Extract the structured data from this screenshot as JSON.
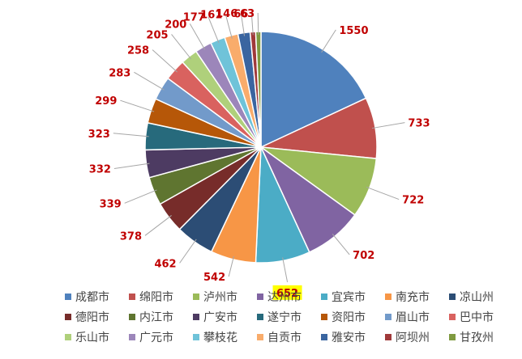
{
  "chart_data": {
    "type": "pie",
    "title": "",
    "legend_position": "bottom",
    "highlighted_label": "宜宾市",
    "slices": [
      {
        "name": "成都市",
        "value": 1550,
        "color": "#4f81bd"
      },
      {
        "name": "绵阳市",
        "value": 733,
        "color": "#c0504d"
      },
      {
        "name": "泸州市",
        "value": 722,
        "color": "#9bbb59"
      },
      {
        "name": "达州市",
        "value": 702,
        "color": "#8064a2"
      },
      {
        "name": "宜宾市",
        "value": 652,
        "color": "#4bacc6"
      },
      {
        "name": "南充市",
        "value": 542,
        "color": "#f79646"
      },
      {
        "name": "凉山州",
        "value": 462,
        "color": "#2c4d75"
      },
      {
        "name": "德阳市",
        "value": 378,
        "color": "#772c2a"
      },
      {
        "name": "内江市",
        "value": 339,
        "color": "#5f7530"
      },
      {
        "name": "广安市",
        "value": 332,
        "color": "#4d3b62"
      },
      {
        "name": "遂宁市",
        "value": 323,
        "color": "#276a7c"
      },
      {
        "name": "资阳市",
        "value": 299,
        "color": "#b65708"
      },
      {
        "name": "眉山市",
        "value": 283,
        "color": "#729aca"
      },
      {
        "name": "巴中市",
        "value": 258,
        "color": "#d9625f"
      },
      {
        "name": "乐山市",
        "value": 205,
        "color": "#afd07b"
      },
      {
        "name": "广元市",
        "value": 200,
        "color": "#9c86ba"
      },
      {
        "name": "攀枝花",
        "value": 177,
        "color": "#6fc3d9"
      },
      {
        "name": "自贡市",
        "value": 161,
        "color": "#f9ac6b"
      },
      {
        "name": "雅安市",
        "value": 146,
        "color": "#3a65a0"
      },
      {
        "name": "阿坝州",
        "value": 66,
        "color": "#a0393a"
      },
      {
        "name": "甘孜州",
        "value": 63,
        "color": "#7f9a40"
      }
    ]
  }
}
